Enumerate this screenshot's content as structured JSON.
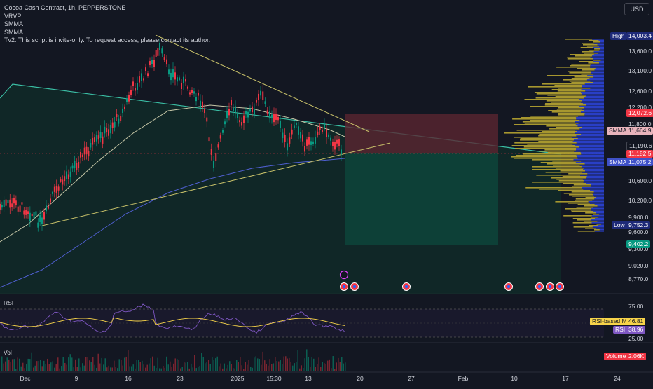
{
  "legend": {
    "title": "Cocoa Cash Contract, 1h, PEPPERSTONE",
    "lines": [
      "VRVP",
      "SMMA",
      "SMMA",
      "Tv2: This script is invite-only. To request access, please contact its author."
    ]
  },
  "currency": "USD",
  "price_axis": {
    "ticks": [
      "13,600.0",
      "13,100.0",
      "12,600.0",
      "12,200.0",
      "11,800.0",
      "10,600.0",
      "10,200.0",
      "9,900.0",
      "9,600.0",
      "9,300.0",
      "9,020.0",
      "8,770.0"
    ],
    "high": {
      "label": "High",
      "value": "14,003.4"
    },
    "low": {
      "label": "Low",
      "value": "9,752.3"
    },
    "markers": [
      {
        "value": "12,072.6",
        "color": "#f23645"
      },
      {
        "value": "11,190.6",
        "color": "#131722"
      },
      {
        "value": "11,182.5",
        "color": "#f23645"
      },
      {
        "value": "9,402.2",
        "color": "#089981"
      }
    ],
    "smma_tags": [
      {
        "label": "SMMA",
        "value": "11,664.9",
        "color": "#e8b4bc"
      },
      {
        "label": "SMMA",
        "value": "11,075.2",
        "color": "#5b6ee1"
      }
    ]
  },
  "time_axis": [
    "Dec",
    "9",
    "16",
    "23",
    "2025",
    "15:30",
    "13",
    "20",
    "27",
    "Feb",
    "10",
    "17",
    "24"
  ],
  "rsi": {
    "name": "RSI",
    "ticks": [
      "75.00",
      "25.00"
    ],
    "ma_label": "RSI-based MA",
    "ma_value": "46.81",
    "rsi_label": "RSI",
    "rsi_value": "38.96"
  },
  "volume": {
    "name": "Vol",
    "label": "Volume",
    "value": "2.06K"
  },
  "colors": {
    "background": "#131722",
    "up": "#089981",
    "down": "#f23645",
    "trendline": "#c9c26a",
    "channel": "#3bbfa5",
    "smma_fast": "#c8c8a8",
    "smma_slow": "#4f5fd0",
    "vrvp_up": "#b8a531",
    "vrvp_down": "#2c44d8"
  }
}
